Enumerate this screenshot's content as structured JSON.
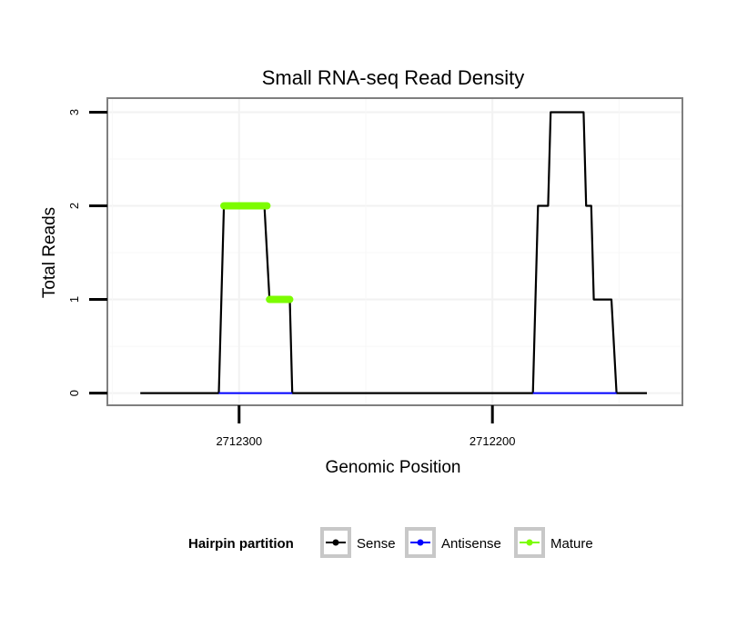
{
  "chart_data": {
    "type": "line",
    "title": "Small RNA-seq Read Density",
    "xlabel": "Genomic Position",
    "ylabel": "Total Reads",
    "x_reversed": true,
    "xlim": [
      2712352,
      2712125
    ],
    "ylim": [
      -0.13,
      3.15
    ],
    "x_ticks": [
      2712300,
      2712200
    ],
    "x_tick_labels": [
      "2712300",
      "2712200"
    ],
    "y_ticks": [
      0,
      1,
      2,
      3
    ],
    "y_tick_labels": [
      "0",
      "1",
      "2",
      "3"
    ],
    "grid": true,
    "legend": {
      "title": "Hairpin partition",
      "position": "bottom",
      "entries": [
        "Sense",
        "Antisense",
        "Mature"
      ]
    },
    "series": [
      {
        "name": "Sense",
        "color": "#000000",
        "points": [
          [
            2712339,
            0
          ],
          [
            2712308,
            0
          ],
          [
            2712308,
            0
          ],
          [
            2712306,
            2
          ],
          [
            2712290,
            2
          ],
          [
            2712288,
            1
          ],
          [
            2712280,
            1
          ],
          [
            2712279,
            0
          ],
          [
            2712184,
            0
          ],
          [
            2712182,
            2
          ],
          [
            2712178,
            2
          ],
          [
            2712177,
            3
          ],
          [
            2712164,
            3
          ],
          [
            2712163,
            2
          ],
          [
            2712161,
            2
          ],
          [
            2712160,
            1
          ],
          [
            2712153,
            1
          ],
          [
            2712151,
            0
          ],
          [
            2712139,
            0
          ]
        ]
      },
      {
        "name": "Antisense",
        "color": "#0000ff",
        "points": [
          [
            2712308,
            0
          ],
          [
            2712279,
            0
          ],
          [
            2712184,
            0
          ],
          [
            2712151,
            0
          ]
        ]
      },
      {
        "name": "Mature",
        "color": "#7cfc00",
        "segments": [
          [
            [
              2712306,
              2
            ],
            [
              2712289,
              2
            ]
          ],
          [
            [
              2712288,
              1
            ],
            [
              2712280,
              1
            ]
          ]
        ]
      }
    ]
  }
}
